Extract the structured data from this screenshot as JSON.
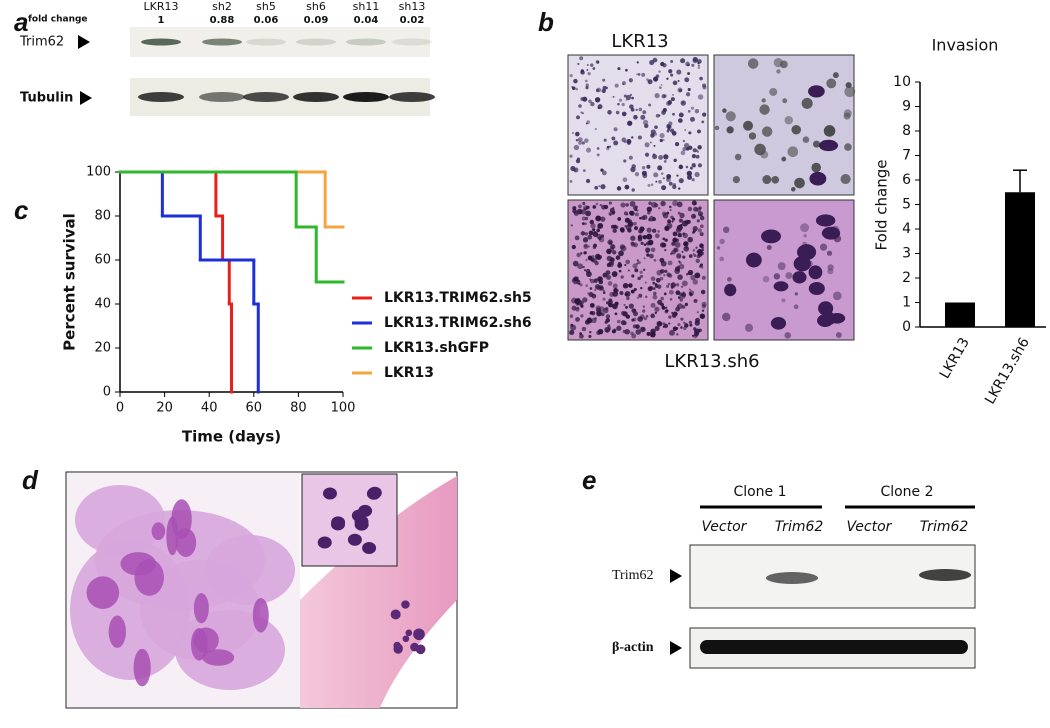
{
  "panel_labels": [
    "a",
    "b",
    "c",
    "d",
    "e"
  ],
  "panel_a": {
    "header": "fold change",
    "lanes": [
      {
        "name": "LKR13",
        "fold_change": 1
      },
      {
        "name": "sh2",
        "fold_change": 0.88
      },
      {
        "name": "sh5",
        "fold_change": 0.06
      },
      {
        "name": "sh6",
        "fold_change": 0.09
      },
      {
        "name": "sh11",
        "fold_change": 0.04
      },
      {
        "name": "sh13",
        "fold_change": 0.02
      }
    ],
    "rows": [
      "Trim62",
      "Tubulin"
    ]
  },
  "panel_b": {
    "top_caption": "LKR13",
    "bottom_caption": "LKR13.sh6"
  },
  "panel_e": {
    "clones": [
      {
        "name": "Clone 1",
        "lanes": [
          "Vector",
          "Trim62"
        ]
      },
      {
        "name": "Clone 2",
        "lanes": [
          "Vector",
          "Trim62"
        ]
      }
    ],
    "rows": [
      "Trim62",
      "β-actin"
    ]
  },
  "chart_data": [
    {
      "type": "bar",
      "title": "Invasion",
      "y_label": "Fold change",
      "categories": [
        "LKR13",
        "LKR13.sh6"
      ],
      "values": [
        1,
        5.5
      ],
      "errors": [
        null,
        0.9
      ],
      "color": "#000000",
      "ylim": [
        0,
        10
      ],
      "yticks": [
        0,
        1,
        2,
        3,
        4,
        5,
        6,
        7,
        8,
        9,
        10
      ]
    },
    {
      "type": "line",
      "drawstyle": "steps-post",
      "x_label": "Time (days)",
      "y_label": "Percent survival",
      "xlim": [
        0,
        100
      ],
      "xticks": [
        0,
        20,
        40,
        60,
        80,
        100
      ],
      "ylim": [
        0,
        100
      ],
      "yticks": [
        0,
        20,
        40,
        60,
        80,
        100
      ],
      "legend": "right",
      "series": [
        {
          "name": "LKR13.TRIM62.sh5",
          "color": "#e8201c",
          "x": [
            0,
            43,
            46,
            49,
            50
          ],
          "values": [
            100,
            80,
            60,
            40,
            0
          ]
        },
        {
          "name": "LKR13.TRIM62.sh6",
          "color": "#1c2fd8",
          "x": [
            0,
            19,
            36,
            60,
            62
          ],
          "values": [
            100,
            80,
            60,
            40,
            0
          ]
        },
        {
          "name": "LKR13.shGFP",
          "color": "#2fb82c",
          "x": [
            0,
            79,
            88,
            100
          ],
          "values": [
            100,
            75,
            50,
            50
          ]
        },
        {
          "name": "LKR13",
          "color": "#f4a541",
          "x": [
            0,
            92,
            100
          ],
          "values": [
            100,
            75,
            75
          ]
        }
      ]
    }
  ]
}
